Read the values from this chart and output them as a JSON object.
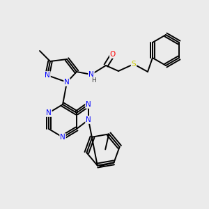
{
  "background_color": "#ebebeb",
  "atom_colors": {
    "N": "#0000ff",
    "O": "#ff0000",
    "S": "#cccc00"
  },
  "bond_color": "#000000",
  "bond_width": 1.4
}
